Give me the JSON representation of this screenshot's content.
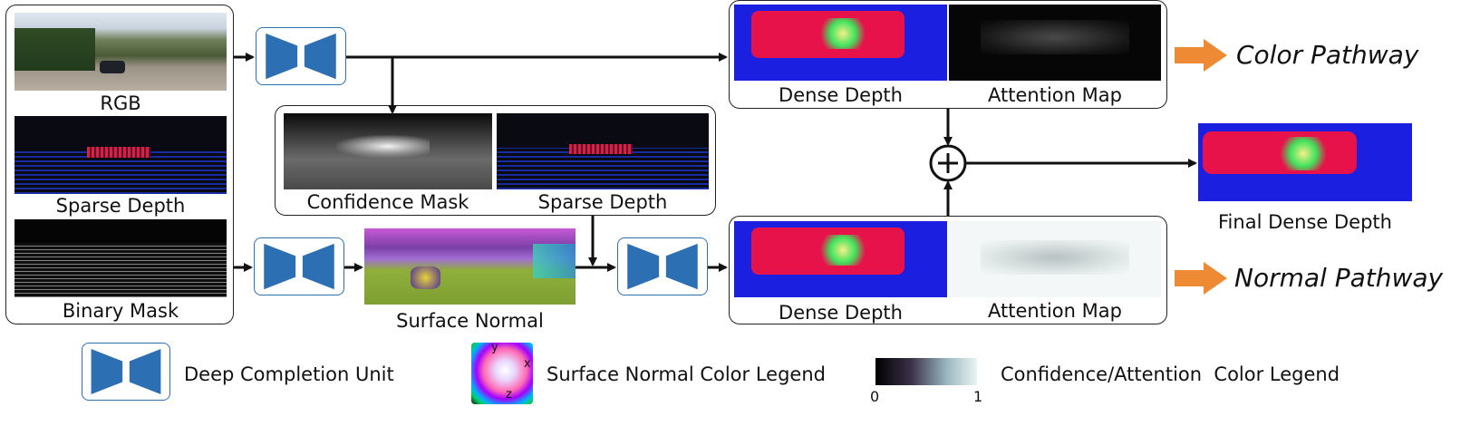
{
  "diagram": {
    "labels": {
      "rgb": "RGB",
      "sparse_depth_input": "Sparse Depth",
      "binary_mask": "Binary Mask",
      "confidence_mask": "Confidence Mask",
      "sparse_depth_mid": "Sparse Depth",
      "surface_normal": "Surface Normal",
      "dense_depth_color": "Dense Depth",
      "attention_map_color": "Attention Map",
      "dense_depth_normal": "Dense Depth",
      "attention_map_normal": "Attention Map",
      "final_dense_depth": "Final Dense Depth",
      "color_pathway": "Color Pathway",
      "normal_pathway": "Normal Pathway",
      "sum_symbol": "+"
    },
    "legend": {
      "dcu_label": "Deep Completion Unit",
      "normal_legend_label": "Surface Normal Color Legend",
      "confidence_legend_label": "Confidence/Attention  Color Legend",
      "colorbar_min": "0",
      "colorbar_max": "1",
      "axis_y": "y",
      "axis_x": "x",
      "axis_z": "z"
    },
    "colors": {
      "dcu_blue": "#2c6fb3",
      "pathway_arrow_orange": "#ee8a33",
      "box_border": "#222222"
    },
    "icons": [
      "deep-completion-unit-icon",
      "orange-arrow-icon",
      "sum-circle-icon"
    ]
  }
}
